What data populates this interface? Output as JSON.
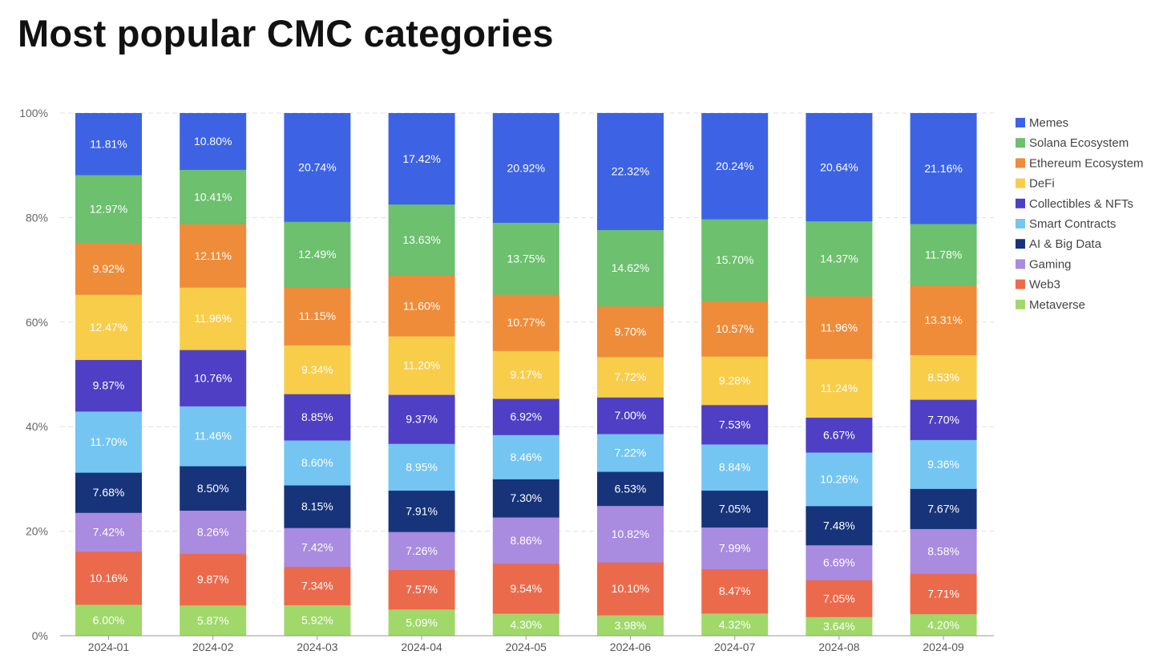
{
  "title": "Most popular CMC categories",
  "chart_data": {
    "type": "bar",
    "stacked": true,
    "title": "Most popular CMC categories",
    "xlabel": "",
    "ylabel": "",
    "ylim": [
      0,
      100
    ],
    "y_ticks": [
      "0%",
      "20%",
      "40%",
      "60%",
      "80%",
      "100%"
    ],
    "grid": "horizontal dashed",
    "legend_position": "right",
    "categories": [
      "2024-01",
      "2024-02",
      "2024-03",
      "2024-04",
      "2024-05",
      "2024-06",
      "2024-07",
      "2024-08",
      "2024-09"
    ],
    "series": [
      {
        "name": "Metaverse",
        "color": "#a0d86a",
        "label_color": "#333333",
        "values": [
          6.0,
          5.87,
          5.92,
          5.09,
          4.3,
          3.98,
          4.32,
          3.64,
          4.2
        ],
        "labels": [
          "6.00%",
          "5.87%",
          "5.92%",
          "5.09%",
          "4.30%",
          "3.98%",
          "4.32%",
          "3.64%",
          "4.20%"
        ]
      },
      {
        "name": "Web3",
        "color": "#ec6a4c",
        "label_color": "#ffffff",
        "values": [
          10.16,
          9.87,
          7.34,
          7.57,
          9.54,
          10.1,
          8.47,
          7.05,
          7.71
        ],
        "labels": [
          "10.16%",
          "9.87%",
          "7.34%",
          "7.57%",
          "9.54%",
          "10.10%",
          "8.47%",
          "7.05%",
          "7.71%"
        ]
      },
      {
        "name": "Gaming",
        "color": "#a98be0",
        "label_color": "#ffffff",
        "values": [
          7.42,
          8.26,
          7.42,
          7.26,
          8.86,
          10.82,
          7.99,
          6.69,
          8.58
        ],
        "labels": [
          "7.42%",
          "8.26%",
          "7.42%",
          "7.26%",
          "8.86%",
          "10.82%",
          "7.99%",
          "6.69%",
          "8.58%"
        ]
      },
      {
        "name": "AI & Big Data",
        "color": "#17347a",
        "label_color": "#ffffff",
        "values": [
          7.68,
          8.5,
          8.15,
          7.91,
          7.3,
          6.53,
          7.05,
          7.48,
          7.67
        ],
        "labels": [
          "7.68%",
          "8.50%",
          "8.15%",
          "7.91%",
          "7.30%",
          "6.53%",
          "7.05%",
          "7.48%",
          "7.67%"
        ]
      },
      {
        "name": "Smart Contracts",
        "color": "#74c5f2",
        "label_color": "#333333",
        "values": [
          11.7,
          11.46,
          8.6,
          8.95,
          8.46,
          7.22,
          8.84,
          10.26,
          9.36
        ],
        "labels": [
          "11.70%",
          "11.46%",
          "8.60%",
          "8.95%",
          "8.46%",
          "7.22%",
          "8.84%",
          "10.26%",
          "9.36%"
        ]
      },
      {
        "name": "Collectibles & NFTs",
        "color": "#4f3fc4",
        "label_color": "#ffffff",
        "values": [
          9.87,
          10.76,
          8.85,
          9.37,
          6.92,
          7.0,
          7.53,
          6.67,
          7.7
        ],
        "labels": [
          "9.87%",
          "10.76%",
          "8.85%",
          "9.37%",
          "6.92%",
          "7.00%",
          "7.53%",
          "6.67%",
          "7.70%"
        ]
      },
      {
        "name": "DeFi",
        "color": "#f7cd4a",
        "label_color": "#333333",
        "values": [
          12.47,
          11.96,
          9.34,
          11.2,
          9.17,
          7.72,
          9.28,
          11.24,
          8.53
        ],
        "labels": [
          "12.47%",
          "11.96%",
          "9.34%",
          "11.20%",
          "9.17%",
          "7.72%",
          "9.28%",
          "11.24%",
          "8.53%"
        ]
      },
      {
        "name": "Ethereum Ecosystem",
        "color": "#ee8c3a",
        "label_color": "#ffffff",
        "values": [
          9.92,
          12.11,
          11.15,
          11.6,
          10.77,
          9.7,
          10.57,
          11.96,
          13.31
        ],
        "labels": [
          "9.92%",
          "12.11%",
          "11.15%",
          "11.60%",
          "10.77%",
          "9.70%",
          "10.57%",
          "11.96%",
          "13.31%"
        ]
      },
      {
        "name": "Solana Ecosystem",
        "color": "#6cc06e",
        "label_color": "#ffffff",
        "values": [
          12.97,
          10.41,
          12.49,
          13.63,
          13.75,
          14.62,
          15.7,
          14.37,
          11.78
        ],
        "labels": [
          "12.97%",
          "10.41%",
          "12.49%",
          "13.63%",
          "13.75%",
          "14.62%",
          "15.70%",
          "14.37%",
          "11.78%"
        ]
      },
      {
        "name": "Memes",
        "color": "#3d63e4",
        "label_color": "#ffffff",
        "values": [
          11.81,
          10.8,
          20.74,
          17.42,
          20.92,
          22.32,
          20.24,
          20.64,
          21.16
        ],
        "labels": [
          "11.81%",
          "10.80%",
          "20.74%",
          "17.42%",
          "20.92%",
          "22.32%",
          "20.24%",
          "20.64%",
          "21.16%"
        ]
      }
    ],
    "legend_order": [
      "Memes",
      "Solana Ecosystem",
      "Ethereum Ecosystem",
      "DeFi",
      "Collectibles & NFTs",
      "Smart Contracts",
      "AI & Big Data",
      "Gaming",
      "Web3",
      "Metaverse"
    ]
  }
}
